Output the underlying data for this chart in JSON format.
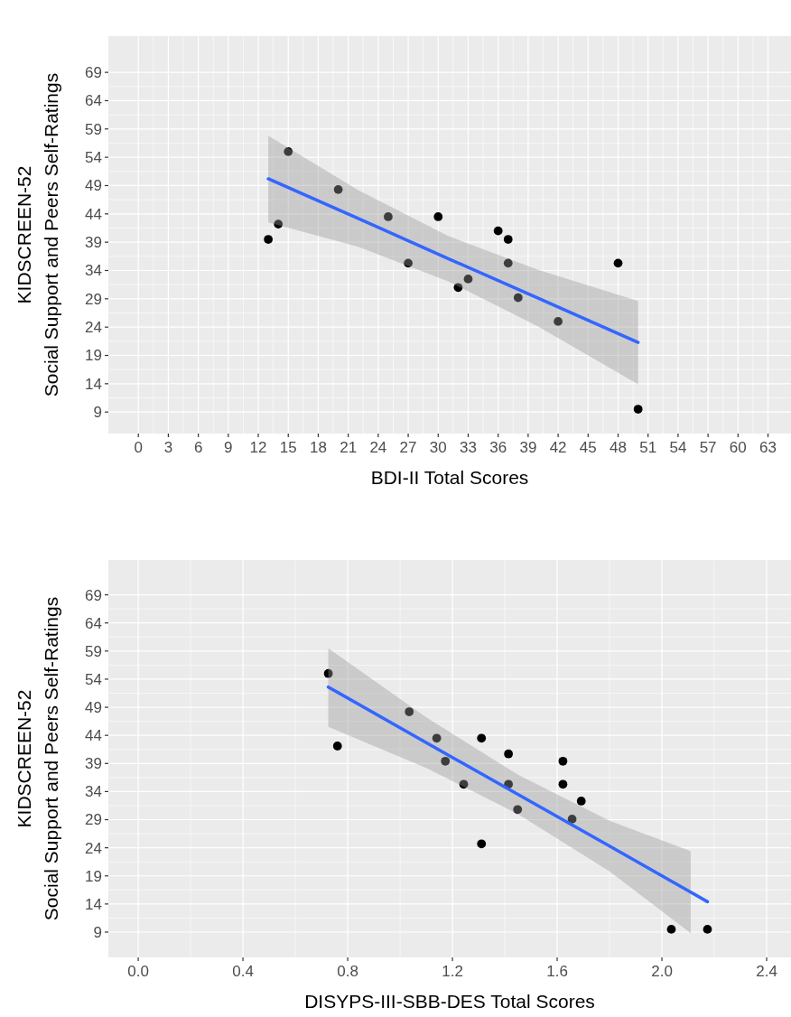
{
  "chart_data": [
    {
      "type": "scatter",
      "xlabel": "BDI-II Total Scores",
      "ylabel": "KIDSCREEN-52\nSocial Support and Peers Self-Ratings",
      "xlim": [
        -3,
        65.3
      ],
      "ylim": [
        5.2,
        75.4
      ],
      "xticks": [
        0,
        3,
        6,
        9,
        12,
        15,
        18,
        21,
        24,
        27,
        30,
        33,
        36,
        39,
        42,
        45,
        48,
        51,
        54,
        57,
        60,
        63
      ],
      "yticks": [
        9,
        14,
        19,
        24,
        29,
        34,
        39,
        44,
        49,
        54,
        59,
        64,
        69
      ],
      "grid": true,
      "series": [
        {
          "marker": "circle",
          "color": "#000000",
          "x": [
            13,
            14,
            15,
            20,
            25,
            27,
            30,
            32,
            33,
            36,
            37,
            37,
            38,
            42,
            48,
            50
          ],
          "values": [
            39.5,
            42.2,
            55,
            48.3,
            43.5,
            35.3,
            43.5,
            31,
            32.5,
            41,
            39.5,
            35.3,
            29.2,
            25,
            35.3,
            9.5
          ]
        },
        {
          "type": "line",
          "color": "#3366ff",
          "x": [
            13,
            22,
            31,
            40,
            50
          ],
          "values": [
            50.2,
            43.2,
            36.1,
            29.1,
            21.3
          ],
          "lower": [
            42.5,
            38.2,
            32.1,
            24.1,
            13.9
          ],
          "upper": [
            57.8,
            48.2,
            40.1,
            34.1,
            28.6
          ]
        }
      ]
    },
    {
      "type": "scatter",
      "xlabel": "DISYPS-III-SBB-DES Total Scores",
      "ylabel": "KIDSCREEN-52\nSocial Support and Peers Self-Ratings",
      "xlim": [
        -0.114,
        2.493
      ],
      "ylim": [
        4.5,
        75.2
      ],
      "xticks": [
        {
          "value": 0,
          "label": "0.0"
        },
        0.4,
        0.8,
        1.2,
        1.6,
        {
          "value": 2,
          "label": "2.0"
        },
        2.4
      ],
      "yticks": [
        9,
        14,
        19,
        24,
        29,
        34,
        39,
        44,
        49,
        54,
        59,
        64,
        69
      ],
      "grid": true,
      "series": [
        {
          "marker": "circle",
          "color": "#000000",
          "x": [
            0.726,
            0.761,
            1.035,
            1.14,
            1.173,
            1.243,
            1.311,
            1.311,
            1.414,
            1.414,
            1.449,
            1.622,
            1.622,
            1.692,
            1.657,
            2.036,
            2.174
          ],
          "values": [
            55,
            42.1,
            48.2,
            43.5,
            39.4,
            35.3,
            43.5,
            24.7,
            40.7,
            35.3,
            30.8,
            39.4,
            35.3,
            32.3,
            29.1,
            9.5,
            9.5
          ]
        },
        {
          "type": "line",
          "color": "#3366ff",
          "x": [
            0.726,
            1.1,
            1.45,
            1.8,
            2.11,
            2.174
          ],
          "values": [
            52.6,
            42.7,
            33.5,
            24.3,
            16.1,
            14.4
          ],
          "lower": [
            45.5,
            38.2,
            30,
            19.8,
            8.8,
            null
          ],
          "upper": [
            59.5,
            47.2,
            37,
            28.8,
            23.4,
            null
          ]
        }
      ]
    }
  ]
}
